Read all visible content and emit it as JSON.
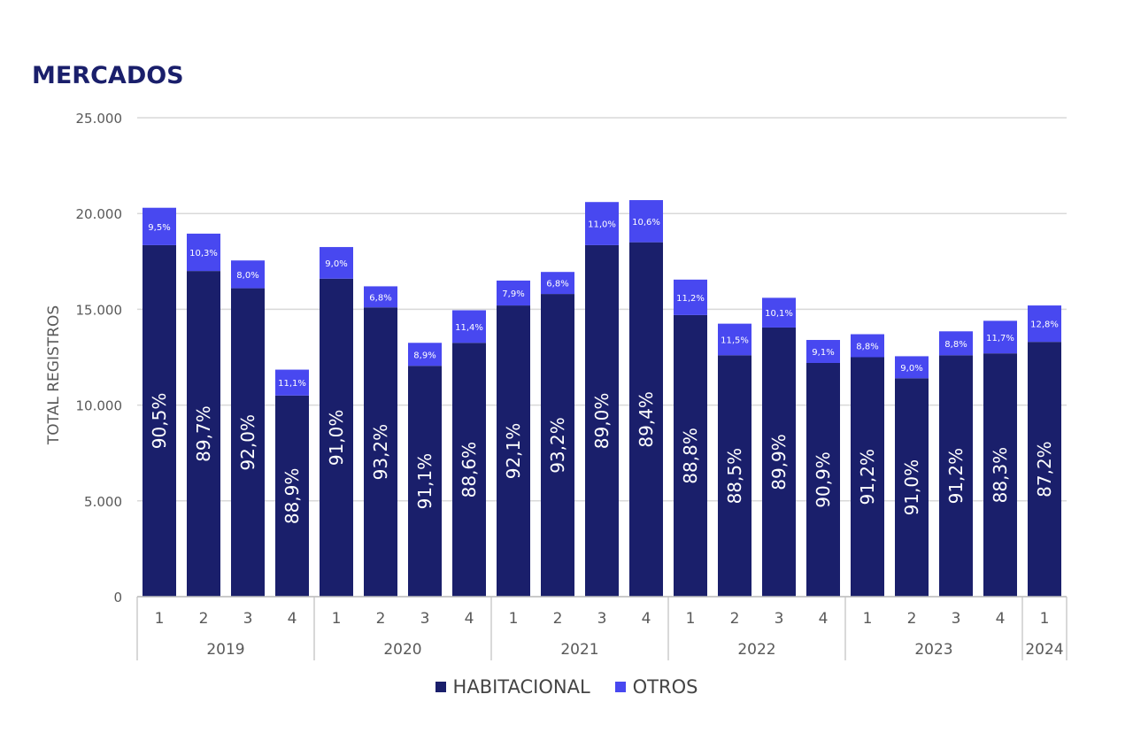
{
  "title": "MERCADOS",
  "colors": {
    "habitacional": "#1a1f6b",
    "otros": "#4848f0",
    "title": "#1a1f6b",
    "grid": "#d9d9d9",
    "axis_text": "#595959"
  },
  "chart_data": {
    "type": "bar",
    "stacked": true,
    "ylabel": "TOTAL REGISTROS",
    "xlabel": "",
    "ylim": [
      0,
      25000
    ],
    "yticks": [
      0,
      5000,
      10000,
      15000,
      20000,
      25000
    ],
    "ytick_labels": [
      "0",
      "5.000",
      "10.000",
      "15.000",
      "20.000",
      "25.000"
    ],
    "grid": true,
    "legend_position": "bottom",
    "categories": [
      "1",
      "2",
      "3",
      "4",
      "1",
      "2",
      "3",
      "4",
      "1",
      "2",
      "3",
      "4",
      "1",
      "2",
      "3",
      "4",
      "1",
      "2",
      "3",
      "4",
      "1"
    ],
    "year_groups": [
      {
        "label": "2019",
        "count": 4
      },
      {
        "label": "2020",
        "count": 4
      },
      {
        "label": "2021",
        "count": 4
      },
      {
        "label": "2022",
        "count": 4
      },
      {
        "label": "2023",
        "count": 4
      },
      {
        "label": "2024",
        "count": 1
      }
    ],
    "series": [
      {
        "name": "HABITACIONAL",
        "values": [
          18350,
          17000,
          16100,
          10500,
          16600,
          15100,
          12050,
          13250,
          15200,
          15800,
          18350,
          18500,
          14700,
          12600,
          14050,
          12200,
          12500,
          11400,
          12600,
          12700,
          13300
        ],
        "labels": [
          "90,5%",
          "89,7%",
          "92,0%",
          "88,9%",
          "91,0%",
          "93,2%",
          "91,1%",
          "88,6%",
          "92,1%",
          "93,2%",
          "89,0%",
          "89,4%",
          "88,8%",
          "88,5%",
          "89,9%",
          "90,9%",
          "91,2%",
          "91,0%",
          "91,2%",
          "88,3%",
          "87,2%"
        ]
      },
      {
        "name": "OTROS",
        "values": [
          1950,
          1950,
          1450,
          1350,
          1650,
          1100,
          1200,
          1700,
          1300,
          1150,
          2250,
          2200,
          1850,
          1650,
          1550,
          1200,
          1200,
          1150,
          1250,
          1700,
          1900
        ],
        "labels": [
          "9,5%",
          "10,3%",
          "8,0%",
          "11,1%",
          "9,0%",
          "6,8%",
          "8,9%",
          "11,4%",
          "7,9%",
          "6,8%",
          "11,0%",
          "10,6%",
          "11,2%",
          "11,5%",
          "10,1%",
          "9,1%",
          "8,8%",
          "9,0%",
          "8,8%",
          "11,7%",
          "12,8%"
        ]
      }
    ]
  }
}
